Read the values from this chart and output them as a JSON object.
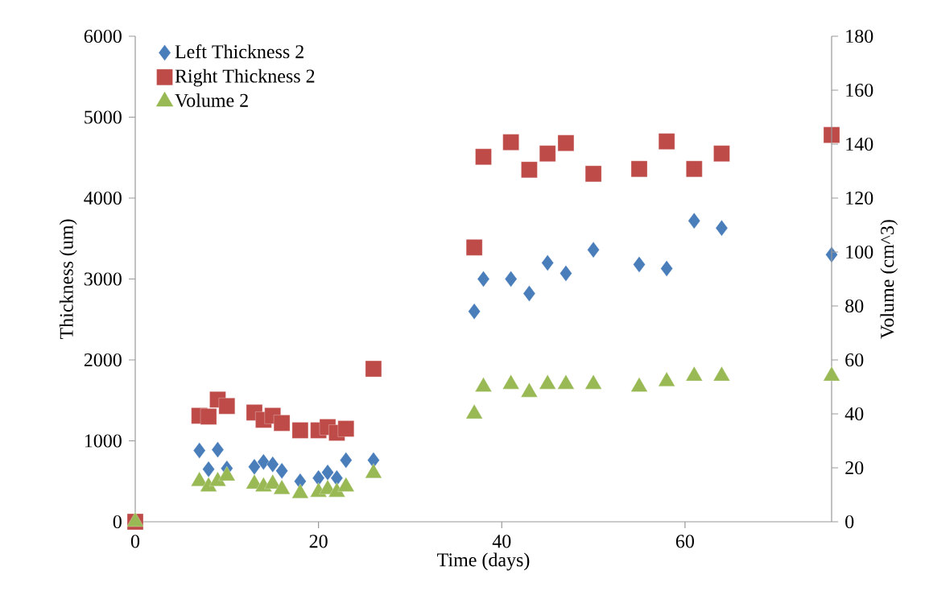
{
  "chart_data": {
    "type": "scatter",
    "xlabel": "Time (days)",
    "ylabel": "Thickness (um)",
    "y2label": "Volume (cm^3)",
    "x": [
      0,
      7,
      8,
      9,
      10,
      13,
      14,
      15,
      16,
      18,
      20,
      21,
      22,
      23,
      26,
      37,
      38,
      41,
      43,
      45,
      47,
      50,
      55,
      58,
      61,
      64,
      76
    ],
    "series": [
      {
        "name": "Left Thickness 2",
        "color": "#4a7ebb",
        "marker": "diamond",
        "values": [
          null,
          880,
          650,
          890,
          660,
          680,
          740,
          710,
          630,
          500,
          540,
          610,
          540,
          760,
          760,
          2600,
          3000,
          3000,
          2820,
          3200,
          3070,
          3360,
          3180,
          3130,
          3720,
          3630,
          3300
        ]
      },
      {
        "name": "Right Thickness 2",
        "color": "#be4b48",
        "marker": "square",
        "values": [
          0,
          1310,
          1300,
          1510,
          1430,
          1350,
          1260,
          1310,
          1220,
          1130,
          1130,
          1170,
          1100,
          1150,
          1890,
          3390,
          4510,
          4690,
          4350,
          4550,
          4680,
          4300,
          4360,
          4700,
          4360,
          4550,
          4780
        ]
      },
      {
        "name": "Volume 2",
        "color": "#98b954",
        "marker": "triangle",
        "axis": "y2",
        "values": [
          0,
          15,
          13,
          15,
          17,
          14,
          13,
          14,
          12,
          10.5,
          11,
          12,
          11,
          13,
          18,
          40,
          50,
          51,
          48,
          51,
          51,
          51,
          50,
          52,
          54,
          54,
          54
        ]
      }
    ],
    "xlim": [
      0,
      76
    ],
    "xticks": [
      0,
      20,
      40,
      60
    ],
    "ylim": [
      0,
      6000
    ],
    "yticks": [
      0,
      1000,
      2000,
      3000,
      4000,
      5000,
      6000
    ],
    "y2lim": [
      0,
      180
    ],
    "y2ticks": [
      0,
      20,
      40,
      60,
      80,
      100,
      120,
      140,
      160,
      180
    ],
    "legend": "top left",
    "grid": false
  }
}
